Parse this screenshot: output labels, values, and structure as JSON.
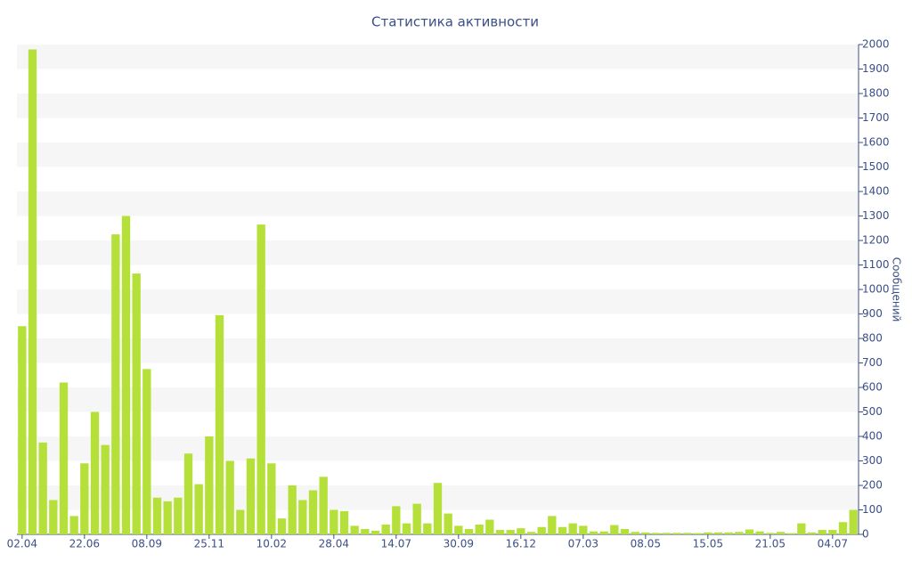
{
  "chart_data": {
    "type": "bar",
    "title": "Статистика активности",
    "y_label": "Сообщений",
    "y_axis_side": "right",
    "grid": "bands",
    "color": "#b5e03a",
    "categories": [
      "02.04",
      null,
      null,
      null,
      null,
      null,
      "22.06",
      null,
      null,
      null,
      null,
      null,
      "08.09",
      null,
      null,
      null,
      null,
      null,
      "25.11",
      null,
      null,
      null,
      null,
      null,
      "10.02",
      null,
      null,
      null,
      null,
      null,
      "28.04",
      null,
      null,
      null,
      null,
      null,
      "14.07",
      null,
      null,
      null,
      null,
      null,
      "30.09",
      null,
      null,
      null,
      null,
      null,
      "16.12",
      null,
      null,
      null,
      null,
      null,
      "07.03",
      null,
      null,
      null,
      null,
      null,
      "08.05",
      null,
      null,
      null,
      null,
      null,
      "15.05",
      null,
      null,
      null,
      null,
      null,
      "21.05",
      null,
      null,
      null,
      null,
      null,
      "04.07",
      null,
      null
    ],
    "values": [
      850,
      1980,
      375,
      140,
      620,
      75,
      290,
      500,
      365,
      1225,
      1300,
      1065,
      675,
      150,
      135,
      150,
      330,
      205,
      400,
      895,
      300,
      100,
      310,
      1265,
      290,
      65,
      200,
      140,
      180,
      235,
      100,
      95,
      35,
      22,
      15,
      40,
      115,
      45,
      125,
      45,
      210,
      85,
      35,
      22,
      40,
      60,
      18,
      18,
      25,
      10,
      30,
      75,
      30,
      45,
      35,
      12,
      12,
      38,
      22,
      10,
      8,
      6,
      6,
      6,
      6,
      5,
      8,
      8,
      8,
      10,
      20,
      12,
      6,
      10,
      5,
      45,
      8,
      18,
      18,
      50,
      100
    ],
    "ylim": [
      0,
      2000
    ],
    "yticks": [
      0,
      100,
      200,
      300,
      400,
      500,
      600,
      700,
      800,
      900,
      1000,
      1100,
      1200,
      1300,
      1400,
      1500,
      1600,
      1700,
      1800,
      1900,
      2000
    ]
  }
}
